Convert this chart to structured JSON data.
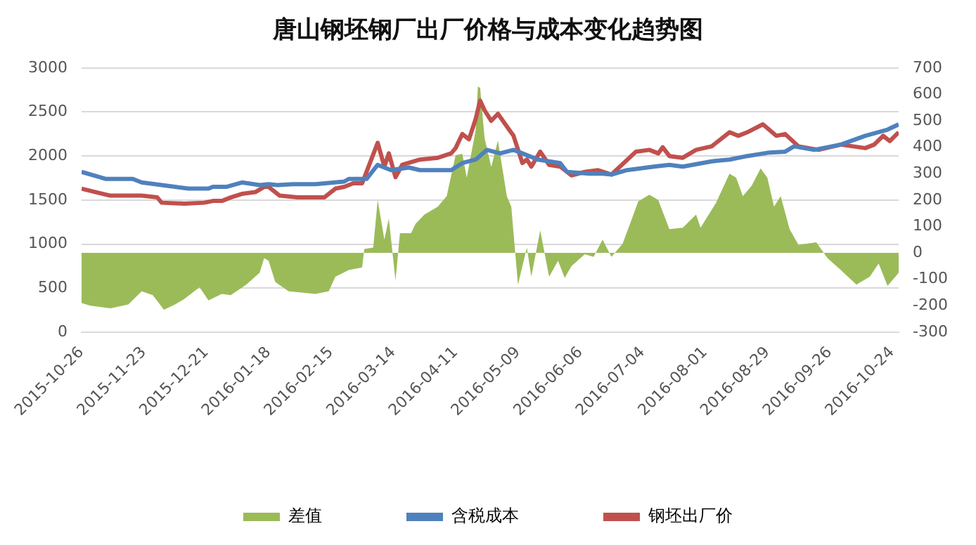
{
  "chart_data": {
    "type": "line",
    "title": "唐山钢坯钢厂出厂价格与成本变化趋势图",
    "xlim": [
      "2015-10-26",
      "2016-10-27"
    ],
    "xticks": [
      "2015-10-26",
      "2015-11-23",
      "2015-12-21",
      "2016-01-18",
      "2016-02-15",
      "2016-03-14",
      "2016-04-11",
      "2016-05-09",
      "2016-06-06",
      "2016-07-04",
      "2016-08-01",
      "2016-08-29",
      "2016-09-26",
      "2016-10-24"
    ],
    "ylim": [
      0,
      3000
    ],
    "yticks": [
      0,
      500,
      1000,
      1500,
      2000,
      2500,
      3000
    ],
    "y2lim": [
      -300,
      700
    ],
    "y2ticks": [
      -300,
      -200,
      -100,
      0,
      100,
      200,
      300,
      400,
      500,
      600,
      700
    ],
    "grid": "y",
    "legend": "bottom",
    "marker": "none",
    "line_style": "solid",
    "series": [
      {
        "name": "差值",
        "type": "area",
        "axis": "y2",
        "color": "#9bbb59",
        "x": [
          "2015-10-26",
          "2015-10-30",
          "2015-11-08",
          "2015-11-16",
          "2015-11-22",
          "2015-11-27",
          "2015-12-02",
          "2015-12-07",
          "2015-12-11",
          "2015-12-18",
          "2015-12-22",
          "2015-12-28",
          "2016-01-01",
          "2016-01-08",
          "2016-01-14",
          "2016-01-16",
          "2016-01-18",
          "2016-01-21",
          "2016-01-27",
          "2016-02-08",
          "2016-02-14",
          "2016-02-17",
          "2016-02-23",
          "2016-02-29",
          "2016-03-01",
          "2016-03-05",
          "2016-03-07",
          "2016-03-10",
          "2016-03-12",
          "2016-03-15",
          "2016-03-17",
          "2016-03-22",
          "2016-03-24",
          "2016-03-28",
          "2016-04-03",
          "2016-04-07",
          "2016-04-11",
          "2016-04-14",
          "2016-04-16",
          "2016-04-20",
          "2016-04-21",
          "2016-04-22",
          "2016-04-24",
          "2016-04-27",
          "2016-04-30",
          "2016-05-04",
          "2016-05-06",
          "2016-05-09",
          "2016-05-13",
          "2016-05-15",
          "2016-05-19",
          "2016-05-23",
          "2016-05-27",
          "2016-05-30",
          "2016-06-02",
          "2016-06-08",
          "2016-06-12",
          "2016-06-16",
          "2016-06-20",
          "2016-06-25",
          "2016-06-29",
          "2016-07-02",
          "2016-07-07",
          "2016-07-11",
          "2016-07-16",
          "2016-07-22",
          "2016-07-28",
          "2016-07-30",
          "2016-08-06",
          "2016-08-12",
          "2016-08-15",
          "2016-08-18",
          "2016-08-22",
          "2016-08-26",
          "2016-08-29",
          "2016-09-01",
          "2016-09-04",
          "2016-09-08",
          "2016-09-12",
          "2016-09-20",
          "2016-09-25",
          "2016-10-01",
          "2016-10-08",
          "2016-10-14",
          "2016-10-18",
          "2016-10-22",
          "2016-10-27"
        ],
        "values": [
          -190,
          -200,
          -210,
          -195,
          -145,
          -160,
          -215,
          -195,
          -175,
          -130,
          -180,
          -155,
          -160,
          -120,
          -75,
          -20,
          -30,
          -110,
          -145,
          -155,
          -145,
          -90,
          -65,
          -55,
          15,
          20,
          200,
          50,
          130,
          -105,
          75,
          75,
          110,
          145,
          175,
          215,
          370,
          375,
          285,
          465,
          630,
          625,
          435,
          325,
          425,
          215,
          175,
          -120,
          20,
          -90,
          85,
          -90,
          -30,
          -95,
          -50,
          -5,
          -15,
          50,
          -15,
          35,
          125,
          195,
          220,
          200,
          90,
          95,
          145,
          95,
          190,
          300,
          285,
          215,
          255,
          320,
          285,
          175,
          215,
          90,
          30,
          40,
          -20,
          -65,
          -120,
          -90,
          -40,
          -125,
          -75
        ]
      },
      {
        "name": "含税成本",
        "color": "#4f81bd",
        "x": [
          "2015-10-26",
          "2015-11-06",
          "2015-11-18",
          "2015-11-22",
          "2015-12-01",
          "2015-12-07",
          "2015-12-13",
          "2015-12-22",
          "2015-12-24",
          "2015-12-30",
          "2016-01-06",
          "2016-01-14",
          "2016-01-18",
          "2016-01-22",
          "2016-01-29",
          "2016-02-08",
          "2016-02-21",
          "2016-02-23",
          "2016-03-02",
          "2016-03-07",
          "2016-03-13",
          "2016-03-21",
          "2016-03-26",
          "2016-04-09",
          "2016-04-14",
          "2016-04-20",
          "2016-04-25",
          "2016-05-01",
          "2016-05-07",
          "2016-05-18",
          "2016-05-28",
          "2016-05-31",
          "2016-06-10",
          "2016-06-16",
          "2016-06-20",
          "2016-06-27",
          "2016-07-09",
          "2016-07-16",
          "2016-07-22",
          "2016-08-04",
          "2016-08-12",
          "2016-08-20",
          "2016-08-30",
          "2016-09-06",
          "2016-09-10",
          "2016-09-19",
          "2016-10-01",
          "2016-10-12",
          "2016-10-22",
          "2016-10-27"
        ],
        "values": [
          1820,
          1740,
          1740,
          1700,
          1670,
          1650,
          1630,
          1630,
          1650,
          1650,
          1700,
          1670,
          1680,
          1670,
          1680,
          1680,
          1710,
          1740,
          1740,
          1900,
          1840,
          1870,
          1840,
          1840,
          1920,
          1960,
          2070,
          2030,
          2070,
          1960,
          1920,
          1820,
          1800,
          1800,
          1790,
          1840,
          1880,
          1900,
          1880,
          1940,
          1960,
          2000,
          2040,
          2050,
          2110,
          2070,
          2130,
          2230,
          2300,
          2360
        ]
      },
      {
        "name": "钢坯出厂价",
        "color": "#c0504d",
        "x": [
          "2015-10-26",
          "2015-11-03",
          "2015-11-08",
          "2015-11-16",
          "2015-11-22",
          "2015-11-29",
          "2015-12-01",
          "2015-12-11",
          "2015-12-20",
          "2015-12-24",
          "2015-12-28",
          "2016-01-01",
          "2016-01-06",
          "2016-01-12",
          "2016-01-16",
          "2016-01-18",
          "2016-01-23",
          "2016-01-31",
          "2016-02-12",
          "2016-02-17",
          "2016-02-21",
          "2016-02-25",
          "2016-02-29",
          "2016-03-07",
          "2016-03-10",
          "2016-03-12",
          "2016-03-15",
          "2016-03-18",
          "2016-03-26",
          "2016-04-03",
          "2016-04-09",
          "2016-04-11",
          "2016-04-14",
          "2016-04-17",
          "2016-04-20",
          "2016-04-22",
          "2016-04-24",
          "2016-04-27",
          "2016-04-30",
          "2016-05-05",
          "2016-05-07",
          "2016-05-11",
          "2016-05-13",
          "2016-05-15",
          "2016-05-19",
          "2016-05-23",
          "2016-05-28",
          "2016-06-02",
          "2016-06-08",
          "2016-06-14",
          "2016-06-20",
          "2016-07-01",
          "2016-07-07",
          "2016-07-11",
          "2016-07-13",
          "2016-07-16",
          "2016-07-22",
          "2016-07-28",
          "2016-08-04",
          "2016-08-12",
          "2016-08-16",
          "2016-08-20",
          "2016-08-27",
          "2016-09-02",
          "2016-09-06",
          "2016-09-12",
          "2016-09-21",
          "2016-10-01",
          "2016-10-12",
          "2016-10-16",
          "2016-10-20",
          "2016-10-23",
          "2016-10-27"
        ],
        "values": [
          1630,
          1580,
          1550,
          1550,
          1550,
          1530,
          1470,
          1460,
          1470,
          1490,
          1490,
          1530,
          1570,
          1590,
          1650,
          1650,
          1550,
          1530,
          1530,
          1630,
          1650,
          1690,
          1690,
          2150,
          1880,
          2030,
          1760,
          1900,
          1960,
          1980,
          2030,
          2090,
          2250,
          2190,
          2420,
          2630,
          2520,
          2400,
          2480,
          2300,
          2230,
          1920,
          1960,
          1880,
          2050,
          1900,
          1880,
          1780,
          1820,
          1840,
          1790,
          2050,
          2070,
          2030,
          2100,
          2000,
          1980,
          2070,
          2110,
          2270,
          2230,
          2270,
          2360,
          2230,
          2250,
          2110,
          2070,
          2130,
          2090,
          2130,
          2230,
          2170,
          2270
        ]
      }
    ]
  }
}
